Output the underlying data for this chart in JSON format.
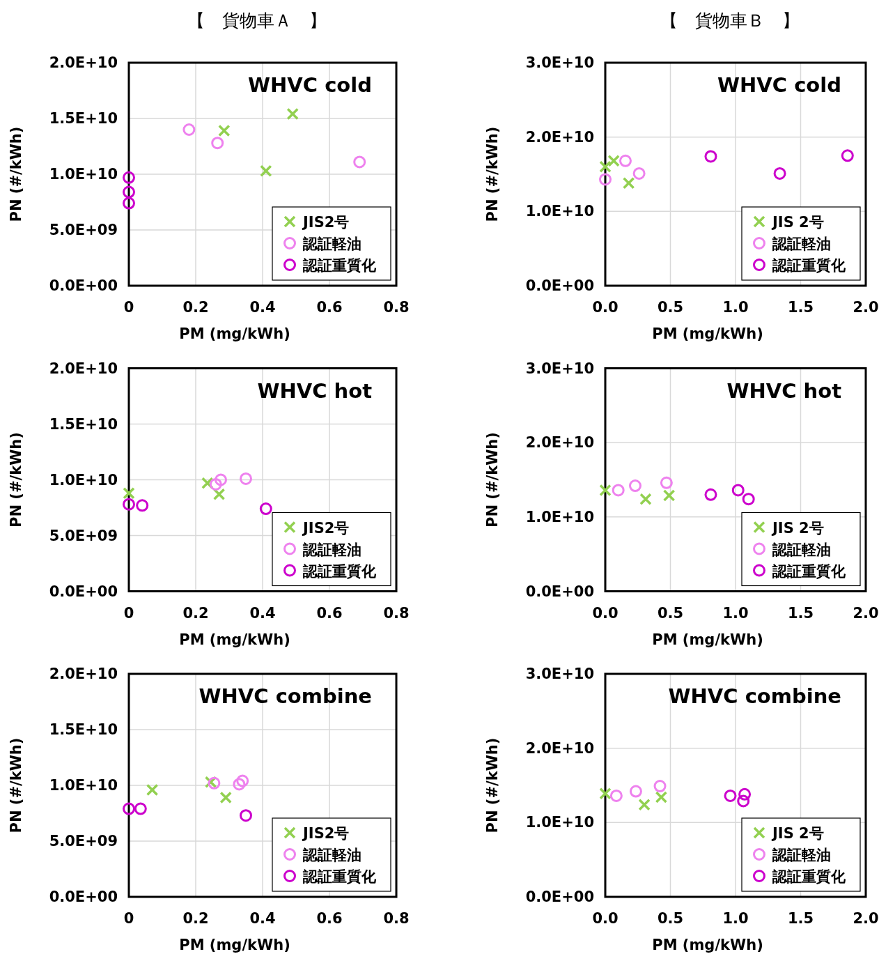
{
  "chart_data": [
    {
      "type": "scatter",
      "subtitle": "【　貨物車Ａ　】",
      "title": "WHVC cold",
      "xlabel": "PM (mg/kWh)",
      "ylabel": "PN (#/kWh)",
      "xlim": [
        0,
        0.8
      ],
      "ylim": [
        0,
        20000000000.0
      ],
      "xticks": [
        0,
        0.2,
        0.4,
        0.6,
        0.8
      ],
      "yticks": [
        {
          "value": 0,
          "label": "0.0E+00"
        },
        {
          "value": 5000000000.0,
          "label": "5.0E+09"
        },
        {
          "value": 10000000000.0,
          "label": "1.0E+10"
        },
        {
          "value": 15000000000.0,
          "label": "1.5E+10"
        },
        {
          "value": 20000000000.0,
          "label": "2.0E+10"
        }
      ],
      "grid": true,
      "legend": "bottom right",
      "series": [
        {
          "name": "JIS2号",
          "color": "#92d050",
          "marker": "cross",
          "x": [
            0.285,
            0.49,
            0.41
          ],
          "values": [
            13900000000.0,
            15400000000.0,
            10300000000.0
          ]
        },
        {
          "name": "認証軽油",
          "color": "#ee82ee",
          "marker": "circle",
          "x": [
            0.18,
            0.265,
            0.69
          ],
          "values": [
            14000000000.0,
            12800000000.0,
            11100000000.0
          ]
        },
        {
          "name": "認証重質化",
          "color": "#cc00cc",
          "marker": "circle",
          "x": [
            0,
            0,
            0
          ],
          "values": [
            9700000000.0,
            8400000000.0,
            7400000000.0
          ]
        }
      ]
    },
    {
      "type": "scatter",
      "subtitle": "【　貨物車Ｂ　】",
      "title": "WHVC cold",
      "xlabel": "PM (mg/kWh)",
      "ylabel": "PN (#/kWh)",
      "xlim": [
        0,
        2.0
      ],
      "ylim": [
        0,
        30000000000.0
      ],
      "xticks": [
        {
          "value": 0,
          "label": "0.0"
        },
        0.5,
        {
          "value": 1,
          "label": "1.0"
        },
        1.5,
        {
          "value": 2,
          "label": "2.0"
        }
      ],
      "yticks": [
        {
          "value": 0,
          "label": "0.0E+00"
        },
        {
          "value": 10000000000.0,
          "label": "1.0E+10"
        },
        {
          "value": 20000000000.0,
          "label": "2.0E+10"
        },
        {
          "value": 30000000000.0,
          "label": "3.0E+10"
        }
      ],
      "grid": true,
      "legend": "bottom right",
      "series": [
        {
          "name": "JIS 2号",
          "color": "#92d050",
          "marker": "cross",
          "x": [
            0,
            0.065,
            0.18
          ],
          "values": [
            16000000000.0,
            16800000000.0,
            13800000000.0
          ]
        },
        {
          "name": "認証軽油",
          "color": "#ee82ee",
          "marker": "circle",
          "x": [
            0,
            0.155,
            0.26
          ],
          "values": [
            14300000000.0,
            16800000000.0,
            15100000000.0
          ]
        },
        {
          "name": "認証重質化",
          "color": "#cc00cc",
          "marker": "circle",
          "x": [
            0.81,
            1.34,
            1.86
          ],
          "values": [
            17400000000.0,
            15100000000.0,
            17500000000.0
          ]
        }
      ]
    },
    {
      "type": "scatter",
      "title": "WHVC hot",
      "xlabel": "PM (mg/kWh)",
      "ylabel": "PN (#/kWh)",
      "xlim": [
        0,
        0.8
      ],
      "ylim": [
        0,
        20000000000.0
      ],
      "xticks": [
        0,
        0.2,
        0.4,
        0.6,
        0.8
      ],
      "yticks": [
        {
          "value": 0,
          "label": "0.0E+00"
        },
        {
          "value": 5000000000.0,
          "label": "5.0E+09"
        },
        {
          "value": 10000000000.0,
          "label": "1.0E+10"
        },
        {
          "value": 15000000000.0,
          "label": "1.5E+10"
        },
        {
          "value": 20000000000.0,
          "label": "2.0E+10"
        }
      ],
      "grid": true,
      "legend": "bottom right",
      "series": [
        {
          "name": "JIS2号",
          "color": "#92d050",
          "marker": "cross",
          "x": [
            0,
            0.235,
            0.27
          ],
          "values": [
            8800000000.0,
            9700000000.0,
            8700000000.0
          ]
        },
        {
          "name": "認証軽油",
          "color": "#ee82ee",
          "marker": "circle",
          "x": [
            0.26,
            0.275,
            0.35
          ],
          "values": [
            9600000000.0,
            10000000000.0,
            10100000000.0
          ]
        },
        {
          "name": "認証重質化",
          "color": "#cc00cc",
          "marker": "circle",
          "x": [
            0,
            0.04,
            0.41
          ],
          "values": [
            7800000000.0,
            7700000000.0,
            7400000000.0
          ]
        }
      ]
    },
    {
      "type": "scatter",
      "title": "WHVC hot",
      "xlabel": "PM (mg/kWh)",
      "ylabel": "PN (#/kWh)",
      "xlim": [
        0,
        2.0
      ],
      "ylim": [
        0,
        30000000000.0
      ],
      "xticks": [
        {
          "value": 0,
          "label": "0.0"
        },
        0.5,
        {
          "value": 1,
          "label": "1.0"
        },
        1.5,
        {
          "value": 2,
          "label": "2.0"
        }
      ],
      "yticks": [
        {
          "value": 0,
          "label": "0.0E+00"
        },
        {
          "value": 10000000000.0,
          "label": "1.0E+10"
        },
        {
          "value": 20000000000.0,
          "label": "2.0E+10"
        },
        {
          "value": 30000000000.0,
          "label": "3.0E+10"
        }
      ],
      "grid": true,
      "legend": "bottom right",
      "series": [
        {
          "name": "JIS 2号",
          "color": "#92d050",
          "marker": "cross",
          "x": [
            0,
            0.31,
            0.49
          ],
          "values": [
            13600000000.0,
            12400000000.0,
            12900000000.0
          ]
        },
        {
          "name": "認証軽油",
          "color": "#ee82ee",
          "marker": "circle",
          "x": [
            0.1,
            0.23,
            0.47
          ],
          "values": [
            13600000000.0,
            14200000000.0,
            14600000000.0
          ]
        },
        {
          "name": "認証重質化",
          "color": "#cc00cc",
          "marker": "circle",
          "x": [
            0.81,
            1.02,
            1.1
          ],
          "values": [
            13000000000.0,
            13600000000.0,
            12400000000.0
          ]
        }
      ]
    },
    {
      "type": "scatter",
      "title": "WHVC combine",
      "xlabel": "PM (mg/kWh)",
      "ylabel": "PN (#/kWh)",
      "xlim": [
        0,
        0.8
      ],
      "ylim": [
        0,
        20000000000.0
      ],
      "xticks": [
        0,
        0.2,
        0.4,
        0.6,
        0.8
      ],
      "yticks": [
        {
          "value": 0,
          "label": "0.0E+00"
        },
        {
          "value": 5000000000.0,
          "label": "5.0E+09"
        },
        {
          "value": 10000000000.0,
          "label": "1.0E+10"
        },
        {
          "value": 15000000000.0,
          "label": "1.5E+10"
        },
        {
          "value": 20000000000.0,
          "label": "2.0E+10"
        }
      ],
      "grid": true,
      "legend": "bottom right",
      "series": [
        {
          "name": "JIS2号",
          "color": "#92d050",
          "marker": "cross",
          "x": [
            0.07,
            0.245,
            0.29
          ],
          "values": [
            9600000000.0,
            10300000000.0,
            8900000000.0
          ]
        },
        {
          "name": "認証軽油",
          "color": "#ee82ee",
          "marker": "circle",
          "x": [
            0.255,
            0.33,
            0.34
          ],
          "values": [
            10200000000.0,
            10100000000.0,
            10400000000.0
          ]
        },
        {
          "name": "認証重質化",
          "color": "#cc00cc",
          "marker": "circle",
          "x": [
            0,
            0.035,
            0.35
          ],
          "values": [
            7900000000.0,
            7900000000.0,
            7300000000.0
          ]
        }
      ]
    },
    {
      "type": "scatter",
      "title": "WHVC combine",
      "xlabel": "PM (mg/kWh)",
      "ylabel": "PN (#/kWh)",
      "xlim": [
        0,
        2.0
      ],
      "ylim": [
        0,
        30000000000.0
      ],
      "xticks": [
        {
          "value": 0,
          "label": "0.0"
        },
        0.5,
        {
          "value": 1,
          "label": "1.0"
        },
        1.5,
        {
          "value": 2,
          "label": "2.0"
        }
      ],
      "yticks": [
        {
          "value": 0,
          "label": "0.0E+00"
        },
        {
          "value": 10000000000.0,
          "label": "1.0E+10"
        },
        {
          "value": 20000000000.0,
          "label": "2.0E+10"
        },
        {
          "value": 30000000000.0,
          "label": "3.0E+10"
        }
      ],
      "grid": true,
      "legend": "bottom right",
      "series": [
        {
          "name": "JIS 2号",
          "color": "#92d050",
          "marker": "cross",
          "x": [
            0,
            0.3,
            0.43
          ],
          "values": [
            13900000000.0,
            12400000000.0,
            13400000000.0
          ]
        },
        {
          "name": "認証軽油",
          "color": "#ee82ee",
          "marker": "circle",
          "x": [
            0.085,
            0.235,
            0.42
          ],
          "values": [
            13600000000.0,
            14200000000.0,
            14900000000.0
          ]
        },
        {
          "name": "認証重質化",
          "color": "#cc00cc",
          "marker": "circle",
          "x": [
            0.96,
            1.07,
            1.06
          ],
          "values": [
            13600000000.0,
            13800000000.0,
            12900000000.0
          ]
        }
      ]
    }
  ]
}
